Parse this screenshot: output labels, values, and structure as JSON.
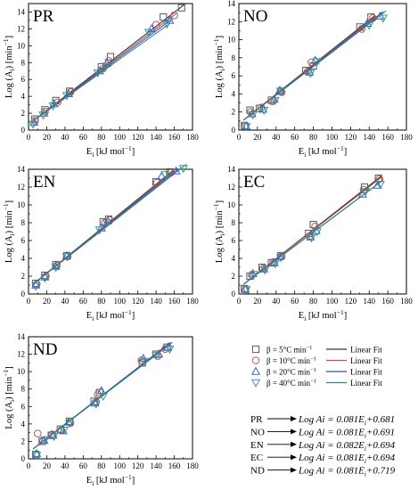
{
  "colors": {
    "s5": "#5a5a5a",
    "s10": "#c0504d",
    "s20": "#3d5ed6",
    "s40": "#2e9a8c",
    "fit5": "#333333",
    "fit10": "#c0504d",
    "fit20": "#3050c8",
    "fit40": "#2a8a7c"
  },
  "axes": {
    "xlabel_main": "E",
    "xlabel_sub": "i",
    "xlabel_unit": " [kJ mol",
    "xlabel_sup": "−1",
    "xlabel_end": "]",
    "ylabel_main": "Log (A",
    "ylabel_sub": "i",
    "ylabel_unit": ") [min",
    "ylabel_sup": "−1",
    "ylabel_end": "]",
    "xticks": [
      "0",
      "20",
      "40",
      "60",
      "80",
      "100",
      "120",
      "140",
      "160",
      "180"
    ],
    "yticks": [
      "0",
      "2",
      "4",
      "6",
      "8",
      "10",
      "12",
      "14"
    ]
  },
  "legend": {
    "entries": [
      {
        "marker": "square",
        "label": "β = 5°C min",
        "sup": "−1",
        "fit": "Linear Fit"
      },
      {
        "marker": "circle",
        "label": "β = 10°C min",
        "sup": "−1",
        "fit": "Linear Fit"
      },
      {
        "marker": "triangle-up",
        "label": "β = 20°C min",
        "sup": "−1",
        "fit": "Linear Fit"
      },
      {
        "marker": "triangle-down",
        "label": "β = 40°C min",
        "sup": "−1",
        "fit": "Linear Fit"
      }
    ]
  },
  "equations": [
    {
      "name": "PR",
      "lhs": "Log Ai = 0.081E",
      "sub": "i",
      "rhs": "+0.681"
    },
    {
      "name": "NO",
      "lhs": "Log Ai = 0.081E",
      "sub": "i",
      "rhs": "+0.691"
    },
    {
      "name": "EN",
      "lhs": "Log Ai = 0.082E",
      "sub": "i",
      "rhs": "+0.694"
    },
    {
      "name": "EC",
      "lhs": "Log Ai = 0.081E",
      "sub": "i",
      "rhs": "+0.694"
    },
    {
      "name": "ND",
      "lhs": "Log Ai = 0.081E",
      "sub": "i",
      "rhs": "+0.719"
    }
  ],
  "chart_data": [
    {
      "type": "scatter",
      "title": "PR",
      "xlim": [
        0,
        180
      ],
      "ylim": [
        0,
        15
      ],
      "series": [
        {
          "name": "β = 5°C min−1",
          "x": [
            7,
            18,
            30,
            45,
            80,
            90,
            148,
            168
          ],
          "y": [
            1.3,
            2.4,
            3.5,
            4.6,
            7.5,
            8.7,
            13.4,
            14.5
          ],
          "fit": [
            0.083,
            0.68
          ]
        },
        {
          "name": "β = 10°C min−1",
          "x": [
            7,
            18,
            32,
            46,
            82,
            88,
            140,
            160
          ],
          "y": [
            1.1,
            2.2,
            3.3,
            4.5,
            7.3,
            8.2,
            12.5,
            13.6
          ],
          "fit": [
            0.081,
            0.68
          ]
        },
        {
          "name": "β = 20°C min−1",
          "x": [
            6,
            17,
            28,
            44,
            78,
            86,
            135,
            155
          ],
          "y": [
            0.9,
            2.0,
            3.1,
            4.3,
            7.0,
            7.9,
            12.0,
            13.0
          ],
          "fit": [
            0.079,
            0.7
          ]
        },
        {
          "name": "β = 40°C min−1",
          "x": [
            5,
            16,
            27,
            42,
            76,
            85,
            132,
            152
          ],
          "y": [
            0.7,
            1.8,
            2.9,
            4.1,
            6.8,
            7.6,
            11.6,
            12.6
          ],
          "fit": [
            0.077,
            0.7
          ]
        }
      ]
    },
    {
      "type": "scatter",
      "title": "NO",
      "xlim": [
        0,
        180
      ],
      "ylim": [
        0,
        14
      ],
      "series": [
        {
          "name": "β = 5°C min−1",
          "x": [
            6,
            12,
            22,
            35,
            45,
            72,
            80,
            130,
            142
          ],
          "y": [
            0.5,
            2.2,
            2.4,
            3.3,
            4.3,
            6.6,
            7.1,
            11.4,
            12.5
          ],
          "fit": [
            0.082,
            0.69
          ]
        },
        {
          "name": "β = 10°C min−1",
          "x": [
            7,
            13,
            24,
            36,
            46,
            74,
            78,
            132,
            144
          ],
          "y": [
            0.5,
            2.0,
            2.5,
            3.2,
            4.2,
            6.5,
            7.5,
            11.2,
            12.4
          ],
          "fit": [
            0.081,
            0.69
          ]
        },
        {
          "name": "β = 20°C min−1",
          "x": [
            8,
            14,
            26,
            38,
            44,
            76,
            82,
            138,
            152
          ],
          "y": [
            0.4,
            1.8,
            2.3,
            3.4,
            4.4,
            6.4,
            7.7,
            11.8,
            12.6
          ],
          "fit": [
            0.08,
            0.7
          ]
        },
        {
          "name": "β = 40°C min−1",
          "x": [
            8,
            15,
            27,
            39,
            45,
            77,
            84,
            140,
            155
          ],
          "y": [
            0.4,
            1.7,
            2.2,
            3.3,
            4.3,
            6.3,
            7.6,
            11.6,
            12.4
          ],
          "fit": [
            0.079,
            0.7
          ]
        }
      ]
    },
    {
      "type": "scatter",
      "title": "EN",
      "xlim": [
        0,
        180
      ],
      "ylim": [
        0,
        14
      ],
      "series": [
        {
          "name": "β = 5°C min−1",
          "x": [
            8,
            18,
            30,
            42,
            82,
            88,
            140,
            155
          ],
          "y": [
            1.2,
            2.1,
            3.3,
            4.3,
            8.1,
            8.4,
            12.6,
            13.7
          ],
          "fit": [
            0.083,
            0.69
          ]
        },
        {
          "name": "β = 10°C min−1",
          "x": [
            9,
            19,
            31,
            43,
            84,
            89,
            141,
            156
          ],
          "y": [
            1.1,
            2.0,
            3.2,
            4.2,
            8.0,
            8.3,
            12.5,
            13.6
          ],
          "fit": [
            0.082,
            0.69
          ]
        },
        {
          "name": "β = 20°C min−1",
          "x": [
            8,
            18,
            30,
            42,
            80,
            87,
            146,
            162
          ],
          "y": [
            1.0,
            1.9,
            3.1,
            4.3,
            7.4,
            8.2,
            13.2,
            13.8
          ],
          "fit": [
            0.081,
            0.7
          ]
        },
        {
          "name": "β = 40°C min−1",
          "x": [
            8,
            18,
            30,
            42,
            78,
            86,
            150,
            170
          ],
          "y": [
            0.9,
            1.8,
            3.0,
            4.2,
            7.2,
            8.0,
            13.4,
            14.1
          ],
          "fit": [
            0.08,
            0.7
          ]
        }
      ]
    },
    {
      "type": "scatter",
      "title": "EC",
      "xlim": [
        0,
        180
      ],
      "ylim": [
        0,
        14
      ],
      "series": [
        {
          "name": "β = 5°C min−1",
          "x": [
            6,
            12,
            25,
            35,
            45,
            75,
            80,
            135,
            150
          ],
          "y": [
            0.6,
            2.0,
            3.0,
            3.5,
            4.3,
            6.8,
            7.8,
            12.0,
            13.0
          ],
          "fit": [
            0.082,
            0.69
          ]
        },
        {
          "name": "β = 10°C min−1",
          "x": [
            7,
            14,
            26,
            37,
            46,
            76,
            82,
            134,
            151
          ],
          "y": [
            0.5,
            2.1,
            2.9,
            3.6,
            4.2,
            6.5,
            7.6,
            11.7,
            12.9
          ],
          "fit": [
            0.081,
            0.69
          ]
        },
        {
          "name": "β = 20°C min−1",
          "x": [
            7,
            15,
            27,
            38,
            44,
            77,
            83,
            133,
            149
          ],
          "y": [
            0.5,
            2.3,
            2.8,
            3.5,
            4.2,
            6.4,
            7.1,
            11.2,
            12.2
          ],
          "fit": [
            0.078,
            0.7
          ]
        },
        {
          "name": "β = 40°C min−1",
          "x": [
            8,
            16,
            28,
            39,
            45,
            78,
            84,
            136,
            152
          ],
          "y": [
            0.5,
            2.2,
            2.7,
            3.4,
            4.1,
            6.3,
            7.0,
            11.5,
            12.3
          ],
          "fit": [
            0.078,
            0.7
          ]
        }
      ]
    },
    {
      "type": "scatter",
      "title": "ND",
      "xlim": [
        0,
        180
      ],
      "ylim": [
        0,
        14
      ],
      "series": [
        {
          "name": "β = 5°C min−1",
          "x": [
            8,
            15,
            25,
            35,
            45,
            72,
            78,
            125,
            140,
            152
          ],
          "y": [
            0.5,
            2.0,
            2.7,
            3.4,
            4.3,
            6.6,
            7.6,
            11.0,
            12.0,
            12.8
          ],
          "fit": [
            0.081,
            0.72
          ]
        },
        {
          "name": "β = 10°C min−1",
          "x": [
            10,
            16,
            26,
            36,
            46,
            74,
            76,
            124,
            142,
            150
          ],
          "y": [
            2.9,
            2.0,
            2.8,
            3.3,
            4.1,
            6.5,
            7.4,
            11.3,
            11.8,
            12.6
          ],
          "fit": [
            0.081,
            0.72
          ]
        },
        {
          "name": "β = 20°C min−1",
          "x": [
            9,
            17,
            27,
            38,
            44,
            73,
            80,
            126,
            143,
            153
          ],
          "y": [
            0.6,
            2.1,
            2.7,
            3.2,
            4.2,
            6.4,
            7.8,
            11.5,
            12.0,
            12.8
          ],
          "fit": [
            0.081,
            0.72
          ]
        },
        {
          "name": "β = 40°C min−1",
          "x": [
            9,
            18,
            28,
            39,
            45,
            74,
            82,
            127,
            140,
            155
          ],
          "y": [
            0.4,
            2.2,
            2.6,
            3.3,
            4.1,
            6.3,
            7.2,
            11.2,
            11.9,
            12.6
          ],
          "fit": [
            0.08,
            0.72
          ]
        }
      ]
    }
  ]
}
